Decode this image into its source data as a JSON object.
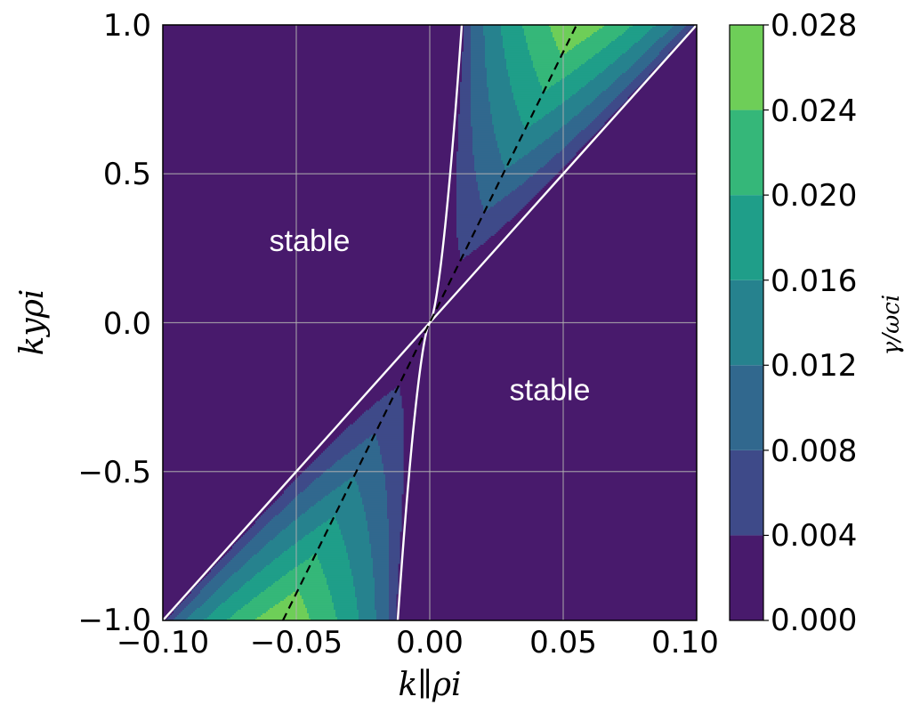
{
  "chart_data": {
    "type": "heatmap",
    "title": "",
    "xlabel": "k∥ρi",
    "ylabel": "kyρi",
    "xlim": [
      -0.1,
      0.1
    ],
    "ylim": [
      -1.0,
      1.0
    ],
    "xticks": [
      "−0.10",
      "−0.05",
      "0.00",
      "0.05",
      "0.10"
    ],
    "yticks": [
      "1.0",
      "0.5",
      "0.0",
      "−0.5",
      "−1.0"
    ],
    "grid": true,
    "colorbar": {
      "label": "γ/ωci",
      "levels": [
        0.0,
        0.004,
        0.008,
        0.012,
        0.016,
        0.02,
        0.024,
        0.028
      ],
      "tick_labels": [
        "0.028",
        "0.024",
        "0.020",
        "0.016",
        "0.012",
        "0.008",
        "0.004",
        "0.000"
      ],
      "colors": [
        "#481a6c",
        "#3e4a89",
        "#31688e",
        "#26828e",
        "#1f9e89",
        "#35b779",
        "#6ece58",
        "#c8e020"
      ]
    },
    "background_color": "#481a6c",
    "stability_boundary_color": "#ffffff",
    "max_growth_line": {
      "style": "dashed",
      "color": "#000000",
      "points": [
        [
          -0.055,
          -1.0
        ],
        [
          0.055,
          1.0
        ]
      ]
    },
    "annotations": [
      {
        "text": "stable",
        "x": -0.045,
        "y": 0.24
      },
      {
        "text": "stable",
        "x": 0.045,
        "y": -0.26
      }
    ]
  }
}
